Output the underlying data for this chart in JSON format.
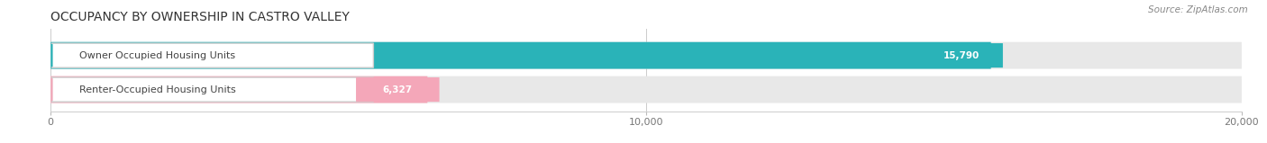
{
  "title": "OCCUPANCY BY OWNERSHIP IN CASTRO VALLEY",
  "source_text": "Source: ZipAtlas.com",
  "categories": [
    "Owner Occupied Housing Units",
    "Renter-Occupied Housing Units"
  ],
  "values": [
    15790,
    6327
  ],
  "bar_colors": [
    "#2ab3b8",
    "#f4a7b9"
  ],
  "value_labels": [
    "15,790",
    "6,327"
  ],
  "xlim": [
    0,
    20000
  ],
  "xtick_labels": [
    "0",
    "10,000",
    "20,000"
  ],
  "xtick_vals": [
    0,
    10000,
    20000
  ],
  "bar_bg_color": "#e8e8e8",
  "title_fontsize": 10,
  "label_fontsize": 8,
  "value_fontsize": 7.5,
  "source_fontsize": 7.5,
  "title_color": "#333333",
  "label_color": "#444444",
  "source_color": "#888888",
  "tick_color": "#777777"
}
